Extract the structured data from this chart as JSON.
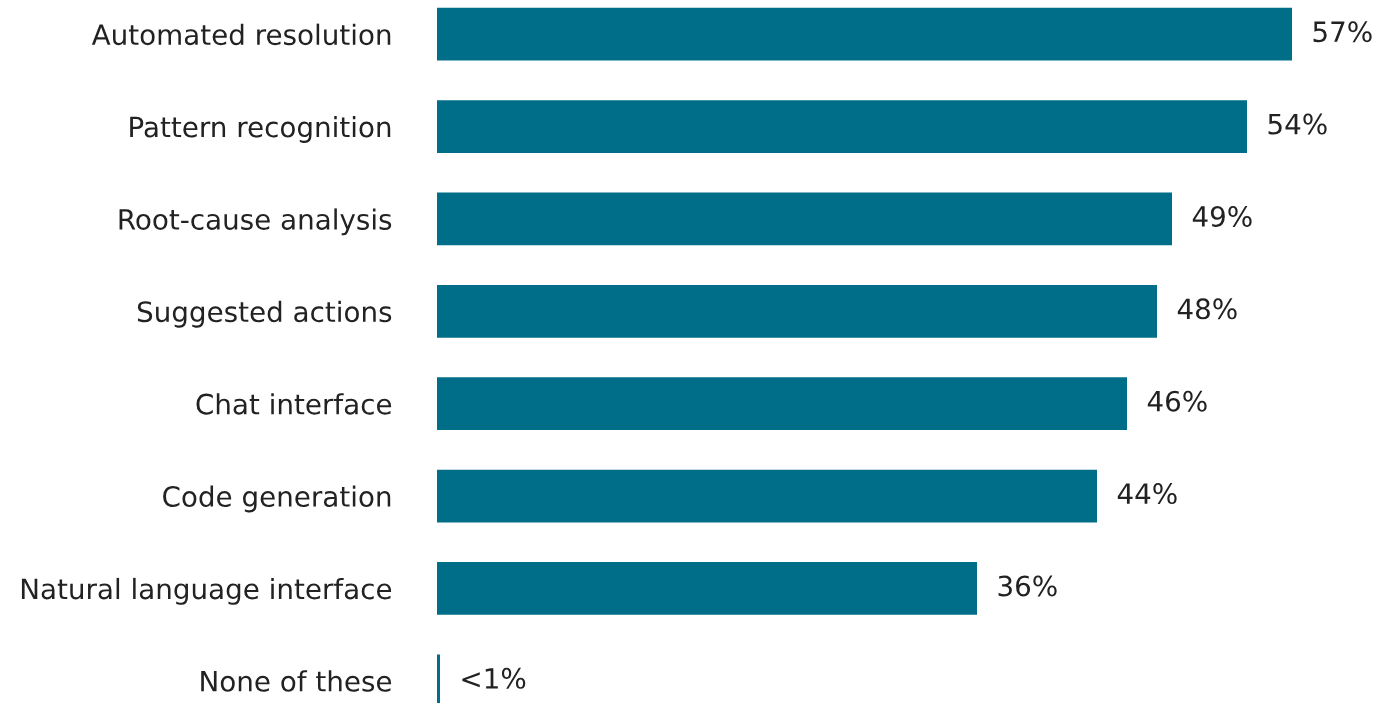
{
  "chart_data": {
    "type": "bar",
    "orientation": "horizontal",
    "categories": [
      "Automated resolution",
      "Pattern recognition",
      "Root-cause analysis",
      "Suggested actions",
      "Chat interface",
      "Code generation",
      "Natural language interface",
      "None of these"
    ],
    "values": [
      57,
      54,
      49,
      48,
      46,
      44,
      36,
      0.2
    ],
    "value_labels": [
      "57%",
      "54%",
      "49%",
      "48%",
      "46%",
      "44%",
      "36%",
      "<1%"
    ],
    "color": "#006e89",
    "grid": false,
    "legend": false,
    "tick_labels": "y"
  }
}
